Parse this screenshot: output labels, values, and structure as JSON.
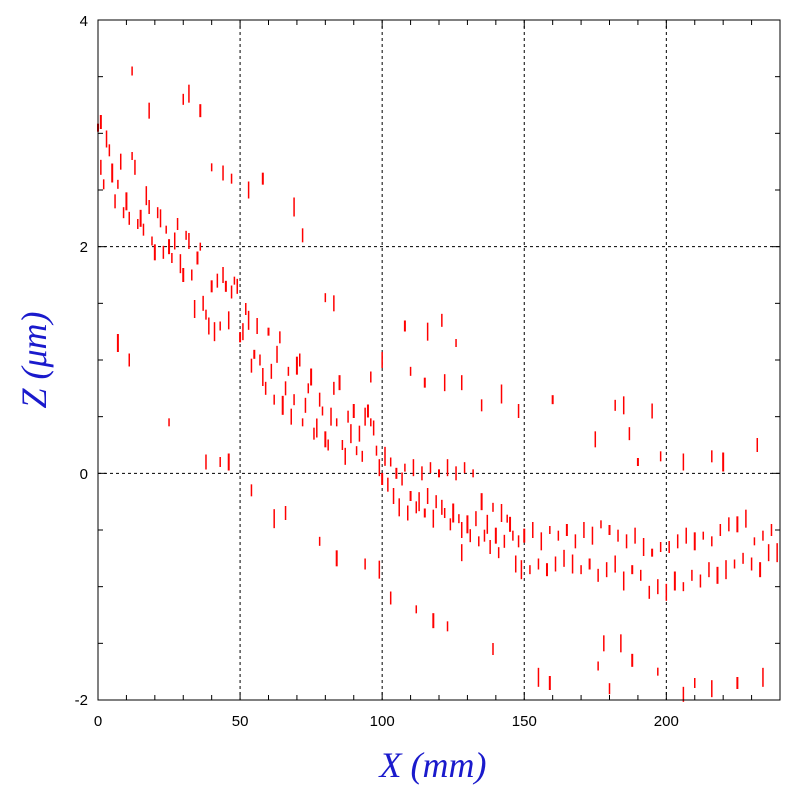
{
  "chart_data": {
    "type": "scatter",
    "xlabel": "X (mm)",
    "ylabel": "Z (μm)",
    "xlim": [
      0,
      240
    ],
    "ylim": [
      -2,
      4
    ],
    "x_ticks": [
      "0",
      "50",
      "100",
      "150",
      "200"
    ],
    "y_ticks": [
      "-2",
      "0",
      "2",
      "4"
    ],
    "grid": "dotted at x=50,100,150,200 and z=0,2",
    "marker": "short vertical line segment",
    "colors": {
      "points": "#ff0000",
      "axis_titles": "#1a1acc",
      "frame": "#000000"
    },
    "series": [
      {
        "points": [
          [
            0,
            3.05
          ],
          [
            1,
            2.7
          ],
          [
            2,
            2.55
          ],
          [
            3,
            2.95
          ],
          [
            4,
            2.85
          ],
          [
            5,
            2.65
          ],
          [
            6,
            2.4
          ],
          [
            7,
            2.55
          ],
          [
            8,
            2.75
          ],
          [
            9,
            2.3
          ],
          [
            10,
            2.4
          ],
          [
            11,
            2.25
          ],
          [
            12,
            2.8
          ],
          [
            13,
            2.7
          ],
          [
            14,
            2.2
          ],
          [
            15,
            2.25
          ],
          [
            16,
            2.15
          ],
          [
            17,
            2.45
          ],
          [
            18,
            2.35
          ],
          [
            19,
            2.05
          ],
          [
            20,
            1.95
          ],
          [
            21,
            2.3
          ],
          [
            22,
            2.25
          ],
          [
            23,
            1.95
          ],
          [
            24,
            2.15
          ],
          [
            25,
            2.0
          ],
          [
            26,
            1.9
          ],
          [
            27,
            2.05
          ],
          [
            28,
            2.2
          ],
          [
            29,
            1.85
          ],
          [
            30,
            1.75
          ],
          [
            31,
            2.1
          ],
          [
            32,
            2.05
          ],
          [
            33,
            1.75
          ],
          [
            34,
            1.45
          ],
          [
            35,
            1.9
          ],
          [
            36,
            2.0
          ],
          [
            37,
            1.5
          ],
          [
            38,
            1.4
          ],
          [
            39,
            1.3
          ],
          [
            40,
            1.65
          ],
          [
            41,
            1.25
          ],
          [
            42,
            1.7
          ],
          [
            43,
            1.3
          ],
          [
            44,
            1.75
          ],
          [
            45,
            1.65
          ],
          [
            46,
            1.35
          ],
          [
            47,
            1.6
          ],
          [
            48,
            1.7
          ],
          [
            49,
            1.65
          ],
          [
            50,
            1.2
          ],
          [
            51,
            1.25
          ],
          [
            52,
            1.45
          ],
          [
            53,
            1.35
          ],
          [
            54,
            0.95
          ],
          [
            55,
            1.05
          ],
          [
            56,
            1.3
          ],
          [
            57,
            1.0
          ],
          [
            58,
            0.85
          ],
          [
            59,
            0.75
          ],
          [
            60,
            1.25
          ],
          [
            61,
            0.9
          ],
          [
            62,
            0.65
          ],
          [
            63,
            1.05
          ],
          [
            64,
            1.2
          ],
          [
            65,
            0.6
          ],
          [
            66,
            0.75
          ],
          [
            67,
            0.9
          ],
          [
            68,
            0.5
          ],
          [
            69,
            0.65
          ],
          [
            70,
            0.95
          ],
          [
            71,
            1.0
          ],
          [
            72,
            0.45
          ],
          [
            73,
            0.6
          ],
          [
            74,
            0.75
          ],
          [
            75,
            0.85
          ],
          [
            76,
            0.35
          ],
          [
            77,
            0.4
          ],
          [
            78,
            0.65
          ],
          [
            79,
            0.55
          ],
          [
            80,
            0.3
          ],
          [
            81,
            0.25
          ],
          [
            82,
            0.5
          ],
          [
            83,
            0.75
          ],
          [
            84,
            0.45
          ],
          [
            85,
            0.8
          ],
          [
            86,
            0.25
          ],
          [
            87,
            0.15
          ],
          [
            88,
            0.5
          ],
          [
            89,
            0.35
          ],
          [
            90,
            0.55
          ],
          [
            91,
            0.2
          ],
          [
            92,
            0.35
          ],
          [
            93,
            0.15
          ],
          [
            94,
            0.5
          ],
          [
            95,
            0.55
          ],
          [
            96,
            0.45
          ],
          [
            97,
            0.4
          ],
          [
            98,
            0.2
          ],
          [
            99,
            0.05
          ],
          [
            100,
            -0.05
          ],
          [
            101,
            0.15
          ],
          [
            102,
            -0.1
          ],
          [
            103,
            0.1
          ],
          [
            104,
            -0.2
          ],
          [
            105,
            0.0
          ],
          [
            106,
            -0.3
          ],
          [
            107,
            -0.05
          ],
          [
            108,
            0.05
          ],
          [
            109,
            -0.35
          ],
          [
            110,
            -0.2
          ],
          [
            111,
            0.05
          ],
          [
            112,
            -0.3
          ],
          [
            113,
            -0.25
          ],
          [
            114,
            0.0
          ],
          [
            115,
            -0.35
          ],
          [
            116,
            -0.2
          ],
          [
            117,
            0.05
          ],
          [
            118,
            -0.4
          ],
          [
            119,
            -0.25
          ],
          [
            120,
            0.0
          ],
          [
            121,
            -0.3
          ],
          [
            122,
            -0.35
          ],
          [
            123,
            0.05
          ],
          [
            124,
            -0.45
          ],
          [
            125,
            -0.35
          ],
          [
            126,
            0.0
          ],
          [
            127,
            -0.4
          ],
          [
            128,
            -0.5
          ],
          [
            129,
            0.05
          ],
          [
            130,
            -0.45
          ],
          [
            131,
            -0.55
          ],
          [
            132,
            0.0
          ],
          [
            133,
            -0.4
          ],
          [
            134,
            -0.6
          ],
          [
            135,
            -0.25
          ],
          [
            136,
            -0.55
          ],
          [
            137,
            -0.45
          ],
          [
            138,
            -0.65
          ],
          [
            139,
            -0.3
          ],
          [
            140,
            -0.55
          ],
          [
            141,
            -0.7
          ],
          [
            142,
            -0.35
          ],
          [
            143,
            -0.6
          ],
          [
            144,
            -0.4
          ],
          [
            145,
            -0.45
          ],
          [
            146,
            -0.55
          ],
          [
            147,
            -0.8
          ],
          [
            148,
            -0.6
          ],
          [
            149,
            -0.85
          ],
          [
            150,
            -0.55
          ],
          [
            152,
            -0.85
          ],
          [
            153,
            -0.5
          ],
          [
            155,
            -0.8
          ],
          [
            156,
            -0.6
          ],
          [
            158,
            -0.85
          ],
          [
            159,
            -0.5
          ],
          [
            161,
            -0.8
          ],
          [
            162,
            -0.55
          ],
          [
            164,
            -0.75
          ],
          [
            165,
            -0.5
          ],
          [
            167,
            -0.8
          ],
          [
            168,
            -0.6
          ],
          [
            170,
            -0.85
          ],
          [
            171,
            -0.5
          ],
          [
            173,
            -0.8
          ],
          [
            174,
            -0.55
          ],
          [
            176,
            -0.9
          ],
          [
            177,
            -0.45
          ],
          [
            179,
            -0.85
          ],
          [
            180,
            -0.5
          ],
          [
            182,
            -0.8
          ],
          [
            183,
            -0.55
          ],
          [
            185,
            -0.95
          ],
          [
            186,
            -0.6
          ],
          [
            188,
            -0.85
          ],
          [
            189,
            -0.55
          ],
          [
            191,
            -0.9
          ],
          [
            192,
            -0.65
          ],
          [
            194,
            -1.05
          ],
          [
            195,
            -0.7
          ],
          [
            197,
            -1.0
          ],
          [
            198,
            -0.65
          ],
          [
            200,
            -1.05
          ],
          [
            201,
            -0.65
          ],
          [
            203,
            -0.95
          ],
          [
            204,
            -0.6
          ],
          [
            206,
            -1.0
          ],
          [
            207,
            -0.55
          ],
          [
            209,
            -0.9
          ],
          [
            210,
            -0.6
          ],
          [
            212,
            -0.95
          ],
          [
            213,
            -0.55
          ],
          [
            215,
            -0.85
          ],
          [
            216,
            -0.6
          ],
          [
            218,
            -0.9
          ],
          [
            219,
            -0.5
          ],
          [
            221,
            -0.85
          ],
          [
            222,
            -0.45
          ],
          [
            224,
            -0.8
          ],
          [
            225,
            -0.45
          ],
          [
            227,
            -0.75
          ],
          [
            228,
            -0.4
          ],
          [
            230,
            -0.8
          ],
          [
            231,
            -0.6
          ],
          [
            233,
            -0.85
          ],
          [
            234,
            -0.55
          ],
          [
            236,
            -0.7
          ],
          [
            237,
            -0.5
          ],
          [
            239,
            -0.7
          ],
          [
            1,
            3.1
          ],
          [
            12,
            3.55
          ],
          [
            18,
            3.2
          ],
          [
            30,
            3.3
          ],
          [
            32,
            3.35
          ],
          [
            36,
            3.2
          ],
          [
            40,
            2.7
          ],
          [
            44,
            2.65
          ],
          [
            47,
            2.6
          ],
          [
            53,
            2.5
          ],
          [
            58,
            2.6
          ],
          [
            69,
            2.35
          ],
          [
            72,
            2.1
          ],
          [
            80,
            1.55
          ],
          [
            83,
            1.5
          ],
          [
            108,
            1.3
          ],
          [
            116,
            1.25
          ],
          [
            121,
            1.35
          ],
          [
            126,
            1.15
          ],
          [
            128,
            0.8
          ],
          [
            115,
            0.8
          ],
          [
            122,
            0.8
          ],
          [
            135,
            0.6
          ],
          [
            142,
            0.7
          ],
          [
            148,
            0.55
          ],
          [
            160,
            0.65
          ],
          [
            175,
            0.3
          ],
          [
            182,
            0.6
          ],
          [
            185,
            0.6
          ],
          [
            187,
            0.35
          ],
          [
            190,
            0.1
          ],
          [
            195,
            0.55
          ],
          [
            198,
            0.15
          ],
          [
            206,
            0.1
          ],
          [
            216,
            0.15
          ],
          [
            220,
            0.1
          ],
          [
            232,
            0.25
          ],
          [
            110,
            0.9
          ],
          [
            100,
            1.0
          ],
          [
            96,
            0.85
          ],
          [
            7,
            1.15
          ],
          [
            11,
            1.0
          ],
          [
            25,
            0.45
          ],
          [
            38,
            0.1
          ],
          [
            43,
            0.1
          ],
          [
            46,
            0.1
          ],
          [
            54,
            -0.15
          ],
          [
            62,
            -0.4
          ],
          [
            66,
            -0.35
          ],
          [
            78,
            -0.6
          ],
          [
            84,
            -0.75
          ],
          [
            94,
            -0.8
          ],
          [
            99,
            -0.85
          ],
          [
            103,
            -1.1
          ],
          [
            112,
            -1.2
          ],
          [
            118,
            -1.3
          ],
          [
            123,
            -1.35
          ],
          [
            128,
            -0.7
          ],
          [
            139,
            -1.55
          ],
          [
            155,
            -1.8
          ],
          [
            159,
            -1.85
          ],
          [
            176,
            -1.7
          ],
          [
            178,
            -1.5
          ],
          [
            180,
            -1.9
          ],
          [
            184,
            -1.5
          ],
          [
            188,
            -1.65
          ],
          [
            197,
            -1.75
          ],
          [
            206,
            -1.95
          ],
          [
            210,
            -1.85
          ],
          [
            216,
            -1.9
          ],
          [
            225,
            -1.85
          ],
          [
            234,
            -1.8
          ]
        ]
      }
    ]
  }
}
